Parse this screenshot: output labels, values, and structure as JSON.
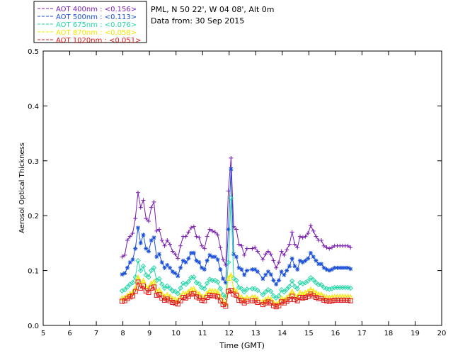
{
  "header": {
    "site_line": "PML, N 50 22', W 04 08', Alt 0m",
    "date_line": "Data from: 30 Sep 2015"
  },
  "chart_data": {
    "type": "line",
    "title": "",
    "xlabel": "Time (GMT)",
    "ylabel": "Aerosol Optical Thickness",
    "xlim": [
      5,
      20
    ],
    "ylim": [
      0.0,
      0.5
    ],
    "xticks": [
      "5",
      "6",
      "7",
      "8",
      "9",
      "10",
      "11",
      "12",
      "13",
      "14",
      "15",
      "16",
      "17",
      "18",
      "19",
      "20"
    ],
    "yticks": [
      "0.0",
      "0.1",
      "0.2",
      "0.3",
      "0.4",
      "0.5"
    ],
    "grid": false,
    "legend_position": "top-left, above plot",
    "x": [
      7.97,
      8.07,
      8.17,
      8.27,
      8.37,
      8.47,
      8.57,
      8.67,
      8.77,
      8.87,
      8.97,
      9.07,
      9.17,
      9.27,
      9.37,
      9.47,
      9.57,
      9.67,
      9.77,
      9.87,
      9.97,
      10.07,
      10.17,
      10.27,
      10.37,
      10.47,
      10.57,
      10.67,
      10.77,
      10.87,
      10.97,
      11.07,
      11.17,
      11.27,
      11.37,
      11.47,
      11.57,
      11.67,
      11.77,
      11.87,
      11.97,
      12.07,
      12.17,
      12.27,
      12.37,
      12.47,
      12.57,
      12.67,
      12.87,
      12.97,
      13.07,
      13.27,
      13.37,
      13.47,
      13.57,
      13.67,
      13.77,
      13.87,
      13.97,
      14.07,
      14.17,
      14.27,
      14.37,
      14.47,
      14.57,
      14.67,
      14.77,
      14.87,
      14.97,
      15.07,
      15.17,
      15.27,
      15.37,
      15.47,
      15.57,
      15.67,
      15.77,
      15.87,
      15.97,
      16.07,
      16.17,
      16.27,
      16.37,
      16.47,
      16.57
    ],
    "series": [
      {
        "name": "AOT  400nm : <0.156>",
        "color": "#7a1fb0",
        "marker": "plus",
        "values": [
          0.125,
          0.128,
          0.155,
          0.162,
          0.168,
          0.195,
          0.242,
          0.215,
          0.228,
          0.195,
          0.19,
          0.215,
          0.225,
          0.172,
          0.175,
          0.155,
          0.145,
          0.155,
          0.148,
          0.135,
          0.13,
          0.122,
          0.145,
          0.162,
          0.162,
          0.17,
          0.178,
          0.18,
          0.162,
          0.16,
          0.145,
          0.14,
          0.162,
          0.175,
          0.172,
          0.17,
          0.165,
          0.142,
          0.12,
          0.11,
          0.245,
          0.305,
          0.18,
          0.175,
          0.148,
          0.145,
          0.128,
          0.14,
          0.14,
          0.142,
          0.135,
          0.12,
          0.13,
          0.135,
          0.13,
          0.118,
          0.105,
          0.115,
          0.135,
          0.128,
          0.138,
          0.148,
          0.17,
          0.148,
          0.142,
          0.162,
          0.16,
          0.162,
          0.168,
          0.182,
          0.172,
          0.162,
          0.155,
          0.155,
          0.145,
          0.142,
          0.14,
          0.142,
          0.145,
          0.145,
          0.145,
          0.145,
          0.145,
          0.145,
          0.142
        ]
      },
      {
        "name": "AOT  500nm : <0.113>",
        "color": "#1a4fd8",
        "marker": "asterisk",
        "values": [
          0.093,
          0.095,
          0.105,
          0.115,
          0.12,
          0.14,
          0.178,
          0.15,
          0.165,
          0.14,
          0.135,
          0.155,
          0.16,
          0.125,
          0.13,
          0.115,
          0.105,
          0.11,
          0.105,
          0.098,
          0.095,
          0.09,
          0.105,
          0.118,
          0.115,
          0.122,
          0.132,
          0.132,
          0.118,
          0.115,
          0.105,
          0.102,
          0.118,
          0.128,
          0.125,
          0.125,
          0.12,
          0.102,
          0.085,
          0.078,
          0.175,
          0.285,
          0.13,
          0.125,
          0.105,
          0.102,
          0.092,
          0.1,
          0.102,
          0.102,
          0.098,
          0.085,
          0.092,
          0.098,
          0.093,
          0.082,
          0.075,
          0.082,
          0.098,
          0.092,
          0.1,
          0.108,
          0.122,
          0.108,
          0.102,
          0.118,
          0.115,
          0.118,
          0.122,
          0.132,
          0.125,
          0.118,
          0.112,
          0.112,
          0.105,
          0.102,
          0.1,
          0.102,
          0.105,
          0.105,
          0.105,
          0.105,
          0.105,
          0.105,
          0.103
        ]
      },
      {
        "name": "AOT  675nm : <0.076>",
        "color": "#22d7a6",
        "marker": "diamond",
        "values": [
          0.063,
          0.065,
          0.07,
          0.075,
          0.078,
          0.088,
          0.118,
          0.1,
          0.108,
          0.092,
          0.088,
          0.1,
          0.105,
          0.082,
          0.085,
          0.075,
          0.068,
          0.072,
          0.068,
          0.063,
          0.062,
          0.058,
          0.068,
          0.077,
          0.075,
          0.08,
          0.087,
          0.088,
          0.078,
          0.076,
          0.069,
          0.067,
          0.077,
          0.084,
          0.082,
          0.082,
          0.079,
          0.067,
          0.056,
          0.051,
          0.115,
          0.232,
          0.086,
          0.082,
          0.069,
          0.067,
          0.061,
          0.066,
          0.067,
          0.067,
          0.064,
          0.056,
          0.061,
          0.065,
          0.062,
          0.054,
          0.05,
          0.054,
          0.065,
          0.061,
          0.066,
          0.071,
          0.081,
          0.071,
          0.067,
          0.078,
          0.076,
          0.078,
          0.081,
          0.087,
          0.083,
          0.078,
          0.074,
          0.074,
          0.069,
          0.067,
          0.066,
          0.067,
          0.069,
          0.069,
          0.069,
          0.069,
          0.069,
          0.069,
          0.068
        ]
      },
      {
        "name": "AOT  870nm : <0.058>",
        "color": "#f2e600",
        "marker": "triangle",
        "values": [
          0.05,
          0.051,
          0.055,
          0.058,
          0.06,
          0.068,
          0.088,
          0.076,
          0.082,
          0.071,
          0.068,
          0.077,
          0.08,
          0.063,
          0.065,
          0.058,
          0.053,
          0.056,
          0.053,
          0.049,
          0.048,
          0.045,
          0.053,
          0.059,
          0.058,
          0.062,
          0.066,
          0.067,
          0.06,
          0.058,
          0.053,
          0.052,
          0.059,
          0.064,
          0.063,
          0.063,
          0.061,
          0.052,
          0.044,
          0.04,
          0.086,
          0.092,
          0.066,
          0.063,
          0.053,
          0.052,
          0.047,
          0.051,
          0.052,
          0.052,
          0.049,
          0.044,
          0.047,
          0.05,
          0.048,
          0.042,
          0.039,
          0.042,
          0.05,
          0.047,
          0.051,
          0.055,
          0.062,
          0.055,
          0.052,
          0.06,
          0.058,
          0.06,
          0.062,
          0.066,
          0.063,
          0.06,
          0.057,
          0.057,
          0.053,
          0.052,
          0.051,
          0.052,
          0.053,
          0.053,
          0.053,
          0.053,
          0.053,
          0.053,
          0.052
        ]
      },
      {
        "name": "AOT 1020nm : <0.051>",
        "color": "#e01818",
        "marker": "square",
        "values": [
          0.044,
          0.045,
          0.049,
          0.052,
          0.054,
          0.062,
          0.079,
          0.068,
          0.072,
          0.063,
          0.06,
          0.068,
          0.07,
          0.055,
          0.056,
          0.05,
          0.046,
          0.048,
          0.045,
          0.042,
          0.041,
          0.039,
          0.045,
          0.051,
          0.05,
          0.053,
          0.057,
          0.058,
          0.052,
          0.05,
          0.046,
          0.045,
          0.051,
          0.055,
          0.054,
          0.054,
          0.052,
          0.045,
          0.038,
          0.035,
          0.062,
          0.064,
          0.057,
          0.055,
          0.046,
          0.045,
          0.041,
          0.044,
          0.045,
          0.045,
          0.042,
          0.038,
          0.041,
          0.043,
          0.041,
          0.036,
          0.034,
          0.036,
          0.043,
          0.041,
          0.044,
          0.047,
          0.053,
          0.047,
          0.045,
          0.051,
          0.05,
          0.051,
          0.053,
          0.057,
          0.054,
          0.051,
          0.049,
          0.049,
          0.046,
          0.045,
          0.044,
          0.045,
          0.046,
          0.046,
          0.046,
          0.046,
          0.046,
          0.046,
          0.045
        ]
      }
    ]
  }
}
